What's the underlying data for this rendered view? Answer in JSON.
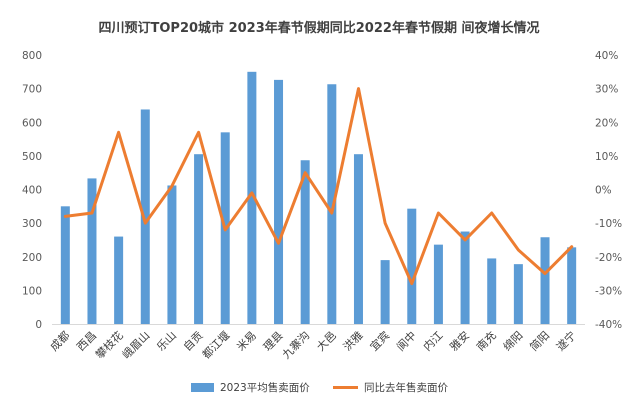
{
  "chart_data": {
    "type": "bar",
    "title": "四川预订TOP20城市 2023年春节假期同比2022年春节假期 间夜增长情况",
    "categories": [
      "成都",
      "西昌",
      "攀枝花",
      "峨眉山",
      "乐山",
      "自贡",
      "都江堰",
      "米易",
      "理县",
      "九寨沟",
      "大邑",
      "洪雅",
      "宜宾",
      "阆中",
      "内江",
      "雅安",
      "南充",
      "绵阳",
      "简阳",
      "遂宁"
    ],
    "series": [
      {
        "name": "2023平均售卖面价",
        "type": "bar",
        "axis": "left",
        "color": "#5B9BD5",
        "values": [
          350,
          433,
          260,
          638,
          412,
          505,
          570,
          750,
          726,
          487,
          713,
          505,
          190,
          343,
          236,
          275,
          195,
          178,
          258,
          228
        ]
      },
      {
        "name": "同比去年售卖面价",
        "type": "line",
        "axis": "right",
        "color": "#ED7D31",
        "unit": "%",
        "values": [
          -8,
          -7,
          17,
          -10,
          1,
          17,
          -12,
          -1,
          -16,
          5,
          -7,
          30,
          -10,
          -28,
          -7,
          -15,
          -7,
          -18,
          -25,
          -17
        ]
      }
    ],
    "ylim_left": [
      0,
      800
    ],
    "yticks_left": [
      "0",
      "100",
      "200",
      "300",
      "400",
      "500",
      "600",
      "700",
      "800"
    ],
    "ylim_right": [
      -40,
      40
    ],
    "yticks_right": [
      "-40%",
      "-30%",
      "-20%",
      "-10%",
      "0%",
      "10%",
      "20%",
      "30%",
      "40%"
    ],
    "legend_position": "bottom",
    "grid": false
  }
}
